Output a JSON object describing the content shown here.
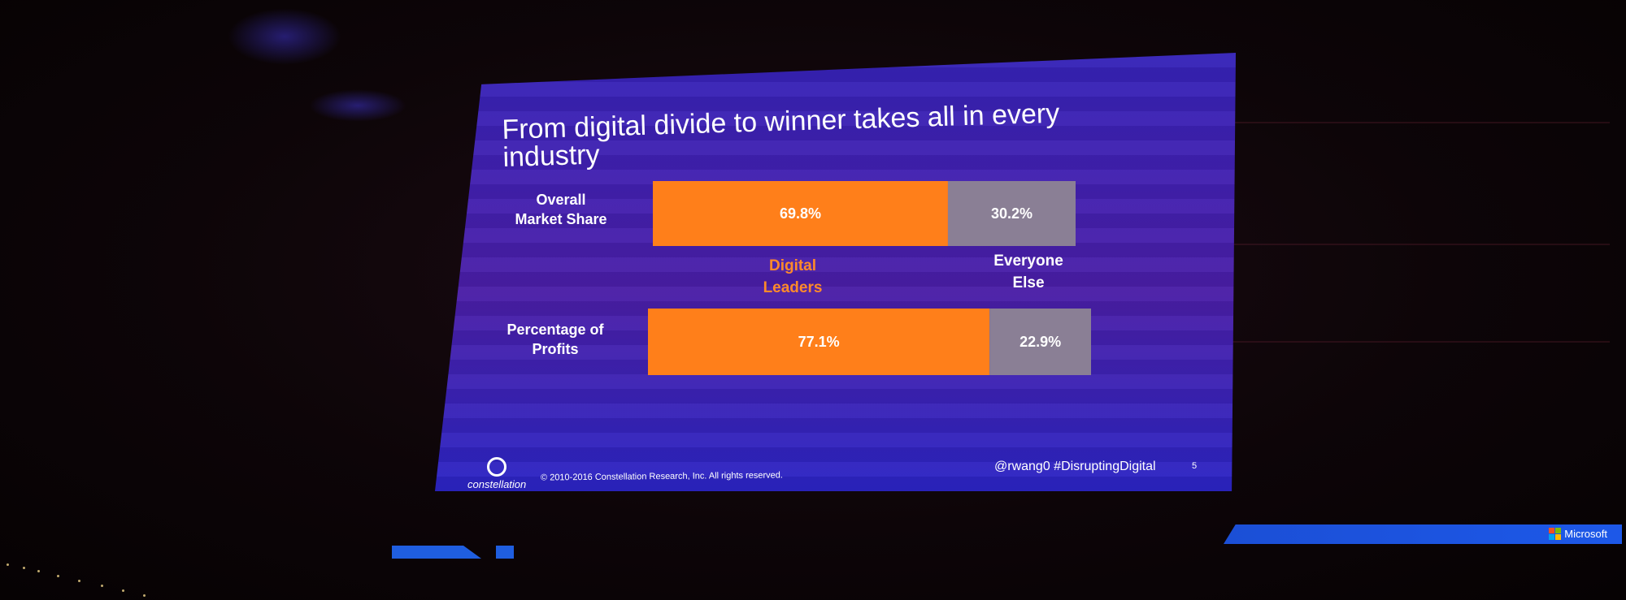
{
  "slide": {
    "title_line1": "From digital divide to winner takes all in every",
    "title_line2": "industry",
    "copyright": "© 2010-2016 Constellation Research, Inc. All rights reserved.",
    "handle": "@rwang0 #DisruptingDigital",
    "page_number": "5",
    "logo_text": "constellation"
  },
  "venue": {
    "sponsor_label": "Microsoft"
  },
  "chart_data": {
    "type": "bar",
    "orientation": "horizontal",
    "stacked": true,
    "title": "From digital divide to winner takes all in every industry",
    "categories": [
      "Overall Market Share",
      "Percentage of Profits"
    ],
    "category_lines": [
      [
        "Overall",
        "Market Share"
      ],
      [
        "Percentage of",
        "Profits"
      ]
    ],
    "series": [
      {
        "name": "Digital Leaders",
        "name_lines": [
          "Digital",
          "Leaders"
        ],
        "values": [
          69.8,
          77.1
        ],
        "labels": [
          "69.8%",
          "77.1%"
        ],
        "color": "#ff7f1a"
      },
      {
        "name": "Everyone Else",
        "name_lines": [
          "Everyone",
          "Else"
        ],
        "values": [
          30.2,
          22.9
        ],
        "labels": [
          "30.2%",
          "22.9%"
        ],
        "color": "#8a7f95"
      }
    ],
    "xlim": [
      0,
      100
    ],
    "grid": false,
    "legend": "between bars"
  },
  "colors": {
    "screen_background": "#4220b0",
    "title_text": "#ffffff",
    "leaders_label": "#ff8a2a"
  }
}
